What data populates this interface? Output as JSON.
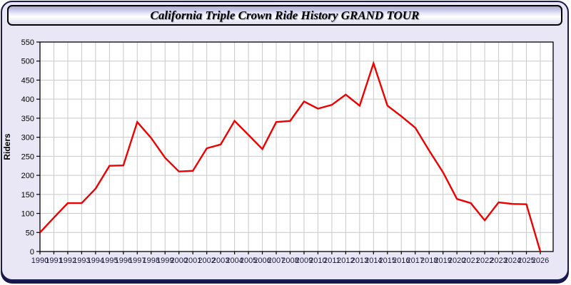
{
  "window": {
    "background": "#e9e7f5",
    "border_color": "#1b1b4d"
  },
  "chart_data": {
    "type": "line",
    "title": "California Triple Crown Ride History GRAND TOUR",
    "xlabel": "",
    "ylabel": "Riders",
    "ylim": [
      0,
      550
    ],
    "ytick_step": 50,
    "grid": true,
    "legend": "none",
    "plot_bg": "#ffffff",
    "grid_color": "#c9c9c9",
    "axis_color": "#000000",
    "x_tick_label_color": "#1a1a3a",
    "y_tick_label_color": "#000000",
    "x": [
      1990,
      1991,
      1992,
      1993,
      1994,
      1995,
      1996,
      1997,
      1998,
      1999,
      2000,
      2001,
      2002,
      2003,
      2004,
      2005,
      2006,
      2007,
      2008,
      2009,
      2010,
      2011,
      2012,
      2013,
      2014,
      2015,
      2016,
      2017,
      2018,
      2019,
      2020,
      2021,
      2022,
      2023,
      2024,
      2025,
      2026
    ],
    "series": [
      {
        "name": "Riders",
        "color": "#ee0000",
        "values": [
          50,
          89,
          127,
          127,
          165,
          225,
          226,
          340,
          298,
          246,
          210,
          212,
          271,
          281,
          343,
          306,
          269,
          340,
          343,
          394,
          375,
          385,
          412,
          383,
          494,
          383,
          355,
          325,
          265,
          208,
          138,
          127,
          82,
          129,
          125,
          124,
          0
        ]
      }
    ]
  }
}
